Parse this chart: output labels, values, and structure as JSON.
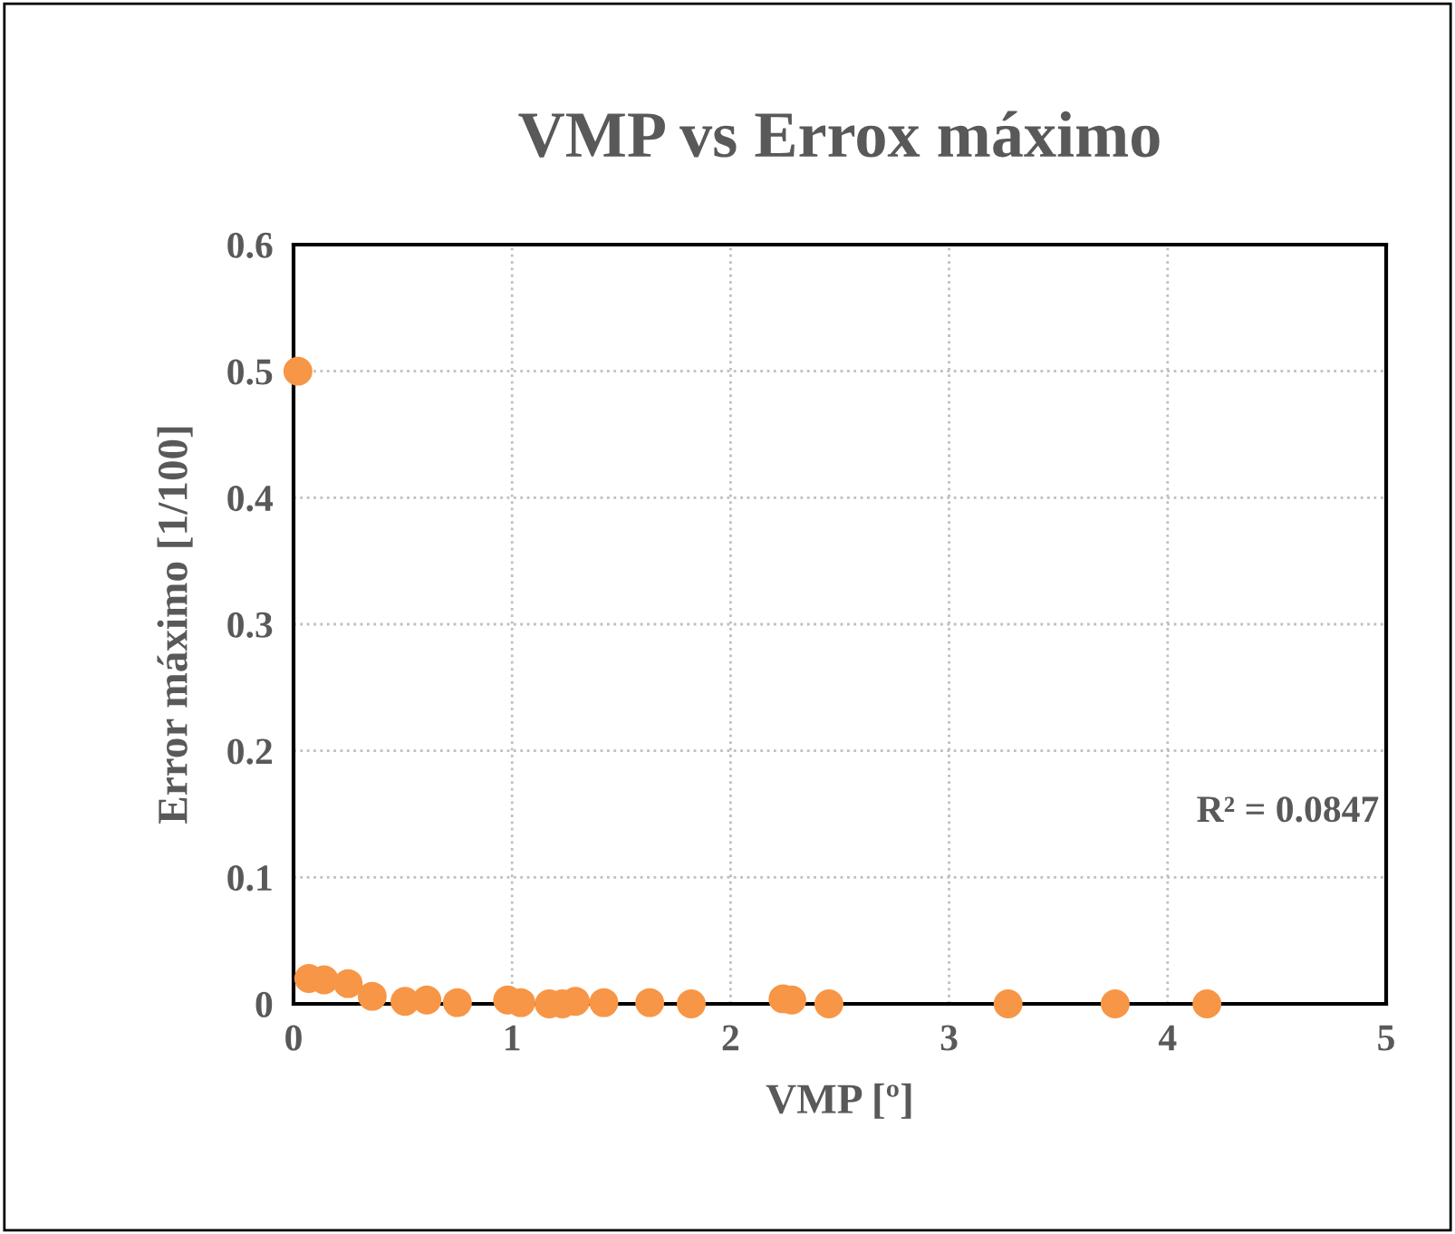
{
  "chart_data": {
    "type": "scatter",
    "title": "VMP vs Errox máximo",
    "xlabel": "VMP [º]",
    "ylabel": "Error máximo [1/100]",
    "series": [
      {
        "color": "#f79646",
        "x": [
          0.02,
          0.07,
          0.14,
          0.25,
          0.36,
          0.51,
          0.61,
          0.75,
          0.98,
          1.04,
          1.17,
          1.23,
          1.29,
          1.42,
          1.63,
          1.82,
          2.24,
          2.28,
          2.45,
          3.27,
          3.76,
          4.18
        ],
        "values": [
          0.5,
          0.02,
          0.019,
          0.016,
          0.006,
          0.002,
          0.003,
          0.001,
          0.003,
          0.001,
          0.0,
          0.0,
          0.002,
          0.001,
          0.001,
          0.0,
          0.004,
          0.003,
          0.0,
          0.0,
          0.0,
          0.0
        ]
      }
    ],
    "annotations": [
      "R² = 0.0847"
    ],
    "xlim": [
      0,
      5
    ],
    "xticks": [
      0,
      1,
      2,
      3,
      4,
      5
    ],
    "ylim": [
      0,
      0.6
    ],
    "yticks": [
      0,
      0.1,
      0.2,
      0.3,
      0.4,
      0.5,
      0.6
    ],
    "grid": true,
    "marker": "circle"
  }
}
